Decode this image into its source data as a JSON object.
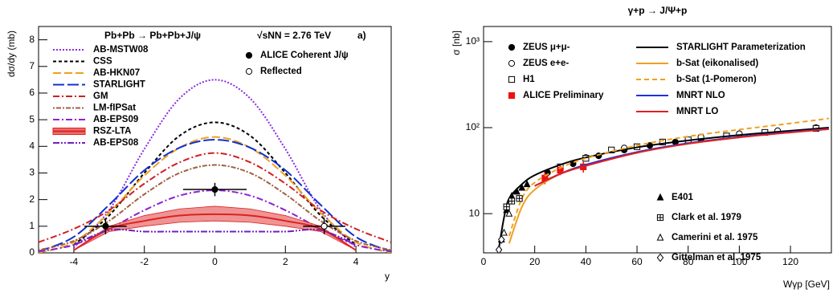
{
  "chart_data": [
    {
      "type": "line",
      "annotations": [
        "Pb+Pb → Pb+Pb+J/ψ",
        "√sNN = 2.76 TeV",
        "a)"
      ],
      "y_label": "dσ/dy (mb)",
      "x_label": "y",
      "xlim": [
        -5,
        5
      ],
      "ylim": [
        0,
        8.5
      ],
      "xticks": [
        -4,
        -2,
        0,
        2,
        4
      ],
      "yticks": [
        0,
        1,
        2,
        3,
        4,
        5,
        6,
        7,
        8
      ],
      "x": [
        -5,
        -4,
        -3,
        -2,
        -1,
        0,
        1,
        2,
        3,
        4,
        5
      ],
      "series": [
        {
          "name": "AB-MSTW08",
          "color": "#8a2be2",
          "dash": "2,2",
          "values": [
            null,
            0.2,
            1.6,
            3.9,
            5.8,
            6.5,
            5.8,
            3.9,
            1.6,
            0.2,
            null
          ]
        },
        {
          "name": "CSS",
          "color": "#000000",
          "dash": "4,3",
          "values": [
            null,
            0.3,
            1.4,
            3.0,
            4.4,
            4.9,
            4.4,
            3.0,
            1.4,
            0.3,
            null
          ]
        },
        {
          "name": "AB-HKN07",
          "color": "#f0a020",
          "dash": "10,4",
          "values": [
            0,
            0.4,
            1.5,
            2.9,
            3.95,
            4.35,
            3.95,
            2.9,
            1.5,
            0.4,
            0
          ]
        },
        {
          "name": "STARLIGHT",
          "color": "#1030d0",
          "dash": "14,4",
          "values": [
            0.05,
            0.6,
            1.8,
            3.1,
            3.95,
            4.25,
            3.95,
            3.1,
            1.8,
            0.6,
            0.05
          ]
        },
        {
          "name": "GM",
          "color": "#d02020",
          "dash": "8,3,2,3",
          "values": [
            0.4,
            0.9,
            1.6,
            2.6,
            3.4,
            3.75,
            3.4,
            2.6,
            1.6,
            0.9,
            0.4
          ]
        },
        {
          "name": "LM-fIPSat",
          "color": "#a06040",
          "dash": "2,2,6,2",
          "values": [
            0.1,
            0.45,
            1.2,
            2.2,
            3.0,
            3.3,
            3.0,
            2.2,
            1.2,
            0.45,
            0.1
          ]
        },
        {
          "name": "AB-EPS09",
          "color": "#9020d0",
          "dash": "8,3,2,3",
          "values": [
            0.05,
            0.3,
            0.9,
            1.6,
            2.15,
            2.35,
            2.15,
            1.6,
            0.9,
            0.3,
            0.05
          ]
        },
        {
          "name": "RSZ-LTA",
          "color": "#e02020",
          "band_color": "#e87070",
          "values": [
            null,
            0.1,
            0.9,
            1.2,
            1.4,
            1.45,
            1.4,
            1.2,
            0.9,
            0.1,
            null
          ],
          "low": [
            null,
            0.1,
            0.8,
            1.0,
            1.15,
            1.2,
            1.15,
            1.0,
            0.8,
            0.1,
            null
          ],
          "high": [
            null,
            0.1,
            1.0,
            1.4,
            1.65,
            1.75,
            1.65,
            1.4,
            1.0,
            0.1,
            null
          ]
        },
        {
          "name": "AB-EPS08",
          "color": "#7020c0",
          "dash": "8,2,2,2,2,2",
          "values": [
            null,
            0.3,
            0.85,
            0.8,
            0.8,
            0.8,
            0.8,
            0.8,
            0.85,
            0.3,
            null
          ]
        },
        {
          "name": "ALICE Coherent J/ψ",
          "color": "#000000",
          "marker": "circle",
          "x": [
            -3.1,
            0
          ],
          "values": [
            1.0,
            2.38
          ],
          "xerr": [
            0.6,
            0.9
          ],
          "yerr": [
            0.3,
            0.25
          ]
        },
        {
          "name": "Reflected",
          "color": "#000000",
          "marker": "circle-open",
          "x": [
            3.1
          ],
          "values": [
            1.0
          ],
          "xerr": [
            0.6
          ],
          "yerr": [
            0.3
          ]
        }
      ]
    },
    {
      "type": "line",
      "title": "γ+p → J/Ψ+p",
      "y_label": "σ [nb]",
      "x_label": "Wγp [GeV]",
      "log_y": true,
      "xlim": [
        0,
        136
      ],
      "ylim": [
        3.5,
        1500
      ],
      "xticks": [
        0,
        20,
        40,
        60,
        80,
        100,
        120
      ],
      "yticks": [
        10,
        {
          "value": 100,
          "label": "10²"
        },
        {
          "value": 1000,
          "label": "10³"
        }
      ],
      "x": [
        6,
        8,
        10,
        15,
        20,
        30,
        40,
        60,
        80,
        100,
        120,
        135
      ],
      "series": [
        {
          "name": "ZEUS μ+μ-",
          "color": "#000000",
          "marker": "circle",
          "x": [
            25,
            35,
            45,
            55,
            65,
            75,
            85,
            95
          ],
          "values": [
            30,
            38,
            47,
            55,
            62,
            68,
            73,
            79
          ]
        },
        {
          "name": "ZEUS e+e-",
          "color": "#000000",
          "marker": "circle-open",
          "x": [
            40,
            55,
            70,
            85,
            100,
            115,
            130
          ],
          "values": [
            45,
            58,
            68,
            78,
            85,
            92,
            100
          ]
        },
        {
          "name": "H1",
          "color": "#000000",
          "marker": "square-open",
          "x": [
            30,
            40,
            50,
            60,
            70,
            80,
            95,
            110,
            130
          ],
          "values": [
            35,
            44,
            55,
            60,
            68,
            72,
            80,
            88,
            98
          ]
        },
        {
          "name": "ALICE Preliminary",
          "color": "#ee1111",
          "marker": "square",
          "x": [
            24,
            30,
            39
          ],
          "values": [
            26,
            32,
            35
          ],
          "yerr": [
            4,
            4,
            5
          ]
        },
        {
          "name": "STARLIGHT Parameterization",
          "color": "#000000",
          "values": [
            4,
            9,
            15,
            22,
            28,
            37,
            45,
            59,
            71,
            82,
            92,
            100
          ]
        },
        {
          "name": "b-Sat (eikonalised)",
          "color": "#f0a020",
          "values": [
            null,
            null,
            4.5,
            12,
            19,
            29,
            37,
            52,
            65,
            77,
            88,
            96
          ]
        },
        {
          "name": "b-Sat (1-Pomeron)",
          "color": "#f0a020",
          "dash": "6,4",
          "values": [
            null,
            null,
            5.5,
            15,
            23,
            34,
            44,
            62,
            79,
            95,
            112,
            128
          ]
        },
        {
          "name": "MNRT NLO",
          "color": "#2030e0",
          "values": [
            null,
            null,
            null,
            null,
            21,
            29,
            37,
            52,
            66,
            78,
            89,
            97
          ]
        },
        {
          "name": "MNRT LO",
          "color": "#e02020",
          "values": [
            null,
            null,
            null,
            null,
            21,
            29,
            36,
            51,
            65,
            77,
            88,
            96
          ]
        },
        {
          "name": "E401",
          "color": "#000000",
          "marker": "triangle",
          "x": [
            7,
            9,
            11,
            13,
            15,
            17
          ],
          "values": [
            5,
            11,
            16,
            18,
            20,
            22
          ]
        },
        {
          "name": "Clark et al. 1979",
          "color": "#000000",
          "marker": "cross-square",
          "x": [
            9,
            11,
            14
          ],
          "values": [
            12,
            14,
            15
          ]
        },
        {
          "name": "Camerini et al. 1975",
          "color": "#000000",
          "marker": "triangle-open",
          "x": [
            8,
            10
          ],
          "values": [
            6,
            10
          ]
        },
        {
          "name": "Gittelman et al. 1975",
          "color": "#000000",
          "marker": "diamond-open",
          "x": [
            6,
            7
          ],
          "values": [
            3.8,
            5
          ]
        }
      ]
    }
  ]
}
